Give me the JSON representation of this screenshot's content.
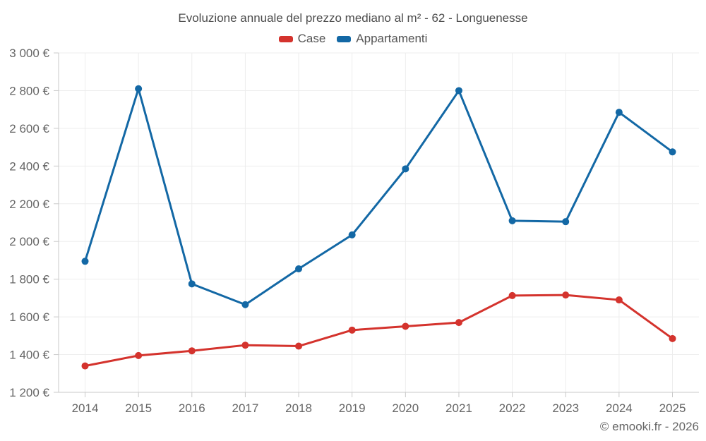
{
  "page": {
    "title": "Evoluzione annuale del prezzo mediano al m² - 62 - Longuenesse",
    "attribution": "© emooki.fr - 2026"
  },
  "chart_data": {
    "type": "line",
    "title": "Evoluzione annuale del prezzo mediano al m² - 62 - Longuenesse",
    "categories": [
      "2014",
      "2015",
      "2016",
      "2017",
      "2018",
      "2019",
      "2020",
      "2021",
      "2022",
      "2023",
      "2024",
      "2025"
    ],
    "series": [
      {
        "name": "Case",
        "color": "#d4332d",
        "values": [
          1340,
          1395,
          1420,
          1450,
          1445,
          1530,
          1550,
          1570,
          1713,
          1716,
          1690,
          1485
        ]
      },
      {
        "name": "Appartamenti",
        "color": "#1368a5",
        "values": [
          1895,
          2810,
          1775,
          1665,
          1855,
          2035,
          2385,
          2800,
          2110,
          2105,
          2685,
          2475
        ]
      }
    ],
    "xlabel": "",
    "ylabel": "",
    "ylim": [
      1200,
      3000
    ],
    "y_step": 200,
    "y_suffix": "€",
    "grid": true,
    "legend_position": "top",
    "axis_color": "#c9c9c9",
    "grid_color": "#ededed",
    "tick_label_color": "#666666"
  }
}
